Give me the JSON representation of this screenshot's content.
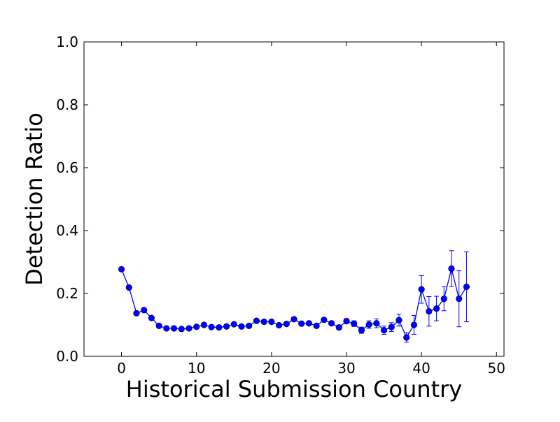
{
  "chart_data": {
    "type": "scatter",
    "title": "",
    "xlabel": "Historical Submission Country",
    "ylabel": "Detection Ratio",
    "xlim": [
      -5,
      51
    ],
    "ylim": [
      0.0,
      1.0
    ],
    "xticks": [
      0,
      10,
      20,
      30,
      40,
      50
    ],
    "xtick_labels": [
      "0",
      "10",
      "20",
      "30",
      "40",
      "50"
    ],
    "yticks": [
      0.0,
      0.2,
      0.4,
      0.6,
      0.8,
      1.0
    ],
    "ytick_labels": [
      "0.0",
      "0.2",
      "0.4",
      "0.6",
      "0.8",
      "1.0"
    ],
    "grid": false,
    "legend": "none",
    "series": [
      {
        "color": "#0000ff",
        "marker": "circle",
        "line": true,
        "x": [
          0,
          1,
          2,
          3,
          4,
          5,
          6,
          7,
          8,
          9,
          10,
          11,
          12,
          13,
          14,
          15,
          16,
          17,
          18,
          19,
          20,
          21,
          22,
          23,
          24,
          25,
          26,
          27,
          28,
          29,
          30,
          31,
          32,
          33,
          34,
          35,
          36,
          37,
          38,
          39,
          40,
          41,
          42,
          43,
          44,
          45,
          46
        ],
        "y": [
          0.277,
          0.219,
          0.137,
          0.147,
          0.122,
          0.097,
          0.089,
          0.089,
          0.087,
          0.089,
          0.094,
          0.1,
          0.093,
          0.092,
          0.095,
          0.102,
          0.095,
          0.097,
          0.113,
          0.11,
          0.11,
          0.099,
          0.103,
          0.118,
          0.104,
          0.105,
          0.097,
          0.116,
          0.105,
          0.092,
          0.112,
          0.104,
          0.083,
          0.101,
          0.105,
          0.083,
          0.093,
          0.115,
          0.06,
          0.1,
          0.213,
          0.143,
          0.152,
          0.183,
          0.279,
          0.183,
          0.221
        ],
        "yerr": [
          0.003,
          0.003,
          0.003,
          0.003,
          0.003,
          0.003,
          0.003,
          0.003,
          0.003,
          0.003,
          0.003,
          0.003,
          0.003,
          0.003,
          0.003,
          0.003,
          0.003,
          0.003,
          0.003,
          0.003,
          0.004,
          0.004,
          0.004,
          0.004,
          0.004,
          0.004,
          0.005,
          0.005,
          0.006,
          0.007,
          0.008,
          0.009,
          0.01,
          0.012,
          0.014,
          0.013,
          0.014,
          0.019,
          0.015,
          0.03,
          0.044,
          0.047,
          0.039,
          0.038,
          0.057,
          0.089,
          0.111
        ]
      }
    ]
  }
}
